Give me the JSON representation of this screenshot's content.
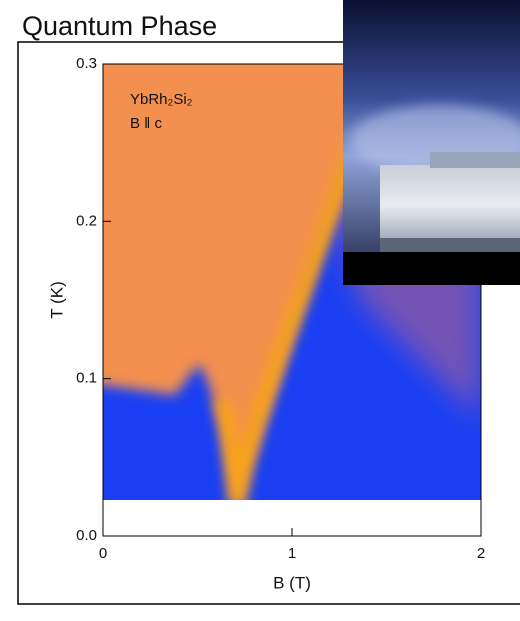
{
  "chart_data": {
    "type": "phase-diagram",
    "title": "Quantum Phase",
    "xlabel": "B (T)",
    "ylabel": "T (K)",
    "annotations": [
      "YbRh₂Si₂",
      "B ǁ c"
    ],
    "xlim": [
      0,
      2
    ],
    "xticks": [
      0,
      1,
      2
    ],
    "ylim": [
      0,
      0.3
    ],
    "yticks": [
      {
        "value": 0,
        "label": "0.0"
      },
      0.1,
      0.2,
      0.3
    ]
  }
}
